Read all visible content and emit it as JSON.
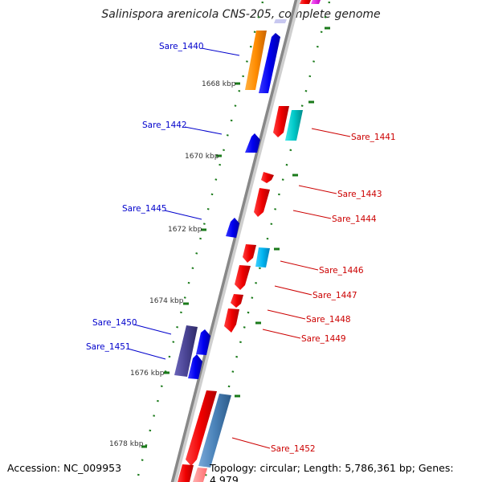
{
  "title": "Salinispora arenicola CNS-205, complete genome",
  "footer": {
    "accession": "Accession: NC_009953",
    "topology": "Topology: circular; Length: 5,786,361 bp; Genes: 4,979"
  },
  "colors": {
    "backbone": "#8a8a8a",
    "forward_label": "#0000cc",
    "reverse_label": "#cc0000",
    "tick": "#1a7a1a"
  },
  "position_labels": [
    "1668 kbp",
    "1670 kbp",
    "1672 kbp",
    "1674 kbp",
    "1676 kbp",
    "1678 kbp"
  ],
  "gene_labels": [
    {
      "name": "Sare_1440",
      "strand": "forward"
    },
    {
      "name": "Sare_1441",
      "strand": "reverse"
    },
    {
      "name": "Sare_1442",
      "strand": "forward"
    },
    {
      "name": "Sare_1443",
      "strand": "reverse"
    },
    {
      "name": "Sare_1444",
      "strand": "reverse"
    },
    {
      "name": "Sare_1445",
      "strand": "forward"
    },
    {
      "name": "Sare_1446",
      "strand": "reverse"
    },
    {
      "name": "Sare_1447",
      "strand": "reverse"
    },
    {
      "name": "Sare_1448",
      "strand": "reverse"
    },
    {
      "name": "Sare_1449",
      "strand": "reverse"
    },
    {
      "name": "Sare_1450",
      "strand": "forward"
    },
    {
      "name": "Sare_1451",
      "strand": "forward"
    },
    {
      "name": "Sare_1452",
      "strand": "reverse"
    }
  ]
}
